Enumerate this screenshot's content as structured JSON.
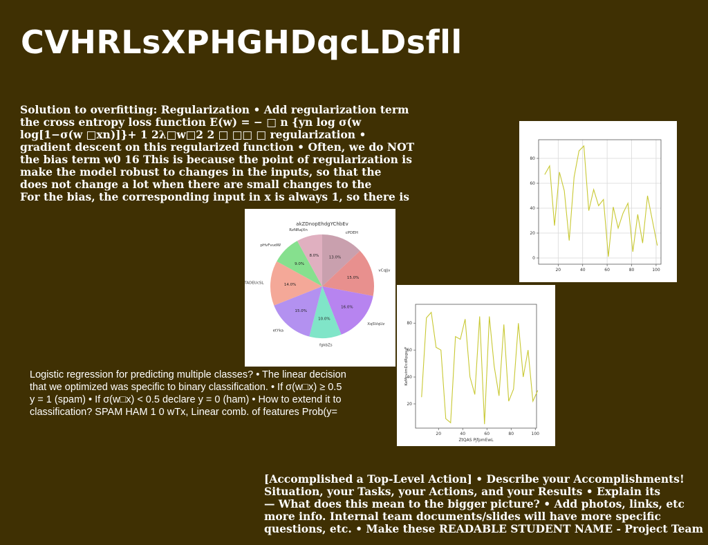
{
  "slide": {
    "title": "CVHRLsXPHGHDqcLDsfll",
    "block1_lines": [
      "Solution to overfitting: Regularization • Add regularization term",
      "the cross entropy loss function E(w) = − □ n {yn log σ(w",
      "log[1−σ(w □xn)]}+ 1 2λ□w□2 2 □ □□ □ regularization •",
      "gradient descent on this regularized function • Often, we do NOT",
      "the bias term w0 16 This is because the point of regularization is",
      "make the model robust to changes in the inputs, so that the",
      "does not change a lot when there are small changes to the",
      "For the bias, the corresponding input in x is always 1, so there is"
    ],
    "block2_lines": [
      "Logistic regression for predicting multiple classes? • The linear decision",
      "that we optimized was specific to binary classification. • If σ(w□x) ≥ 0.5",
      "y = 1 (spam) • If σ(w□x) < 0.5 declare y = 0 (ham) • How to extend it to",
      "classification? SPAM HAM 1 0 wTx, Linear comb. of features Prob(y="
    ],
    "block3_lines": [
      "[Accomplished a Top-Level Action] • Describe your Accomplishments!",
      "Situation, your Tasks, your Actions, and your Results • Explain its",
      "— What does this mean to the bigger picture? • Add photos, links, etc",
      "more info. Internal team documents/slides will have more specific",
      "questions, etc. • Make these READABLE STUDENT NAME - Project Team"
    ]
  },
  "chart_data": [
    {
      "type": "pie",
      "title": "akZDnopEhdgYChbEv",
      "labels": [
        "cPDEH",
        "vCqJjv",
        "XqSVqUz",
        "fgkbZs",
        "etYka",
        "TADEUcSL",
        "pHvFvudW",
        "RzNRajXn"
      ],
      "values": [
        13.0,
        15.0,
        16.0,
        10.0,
        15.0,
        14.0,
        9.0,
        8.0
      ],
      "value_labels": [
        "13.0%",
        "15.0%",
        "16.0%",
        "10.0%",
        "15.0%",
        "14.0%",
        "9.0%",
        "8.0%"
      ],
      "colors": [
        "#c9a0ae",
        "#e8908e",
        "#b784f0",
        "#80e5c8",
        "#b391f0",
        "#f4a898",
        "#86e08e",
        "#e0b0c0"
      ]
    },
    {
      "type": "line",
      "title": "",
      "xlabel": "",
      "ylabel": "",
      "x": [
        9,
        13,
        17,
        21,
        25,
        29,
        33,
        37,
        41,
        45,
        49,
        53,
        57,
        61,
        65,
        69,
        73,
        77,
        81,
        85,
        89,
        93,
        97,
        101
      ],
      "y": [
        67,
        74,
        26,
        69,
        54,
        14,
        65,
        86,
        90,
        38,
        55,
        42,
        47,
        1,
        41,
        24,
        36,
        44,
        5,
        35,
        12,
        50,
        30,
        10
      ],
      "xlim": [
        4,
        104
      ],
      "ylim": [
        -5,
        95
      ],
      "xticks": [
        20,
        40,
        60,
        80,
        100
      ],
      "yticks": [
        0,
        20,
        40,
        60,
        80
      ],
      "color": "#c8c832",
      "grid": true
    },
    {
      "type": "line",
      "title": "",
      "xlabel": "ZtQAS PjfpmEwL",
      "ylabel": "KeMnvimDcdRpgsuF",
      "x": [
        6,
        10,
        14,
        18,
        22,
        26,
        30,
        34,
        38,
        42,
        46,
        50,
        54,
        58,
        62,
        66,
        70,
        74,
        78,
        82,
        86,
        90,
        94,
        98,
        102
      ],
      "y": [
        25,
        84,
        88,
        62,
        60,
        9,
        6,
        70,
        68,
        83,
        40,
        27,
        85,
        5,
        85,
        48,
        26,
        79,
        22,
        31,
        80,
        40,
        60,
        22,
        30
      ],
      "xlim": [
        1,
        101
      ],
      "ylim": [
        2,
        94
      ],
      "xticks": [
        20,
        40,
        60,
        80,
        100
      ],
      "yticks": [
        20,
        40,
        60,
        80
      ],
      "color": "#c8c832",
      "grid": false
    }
  ]
}
